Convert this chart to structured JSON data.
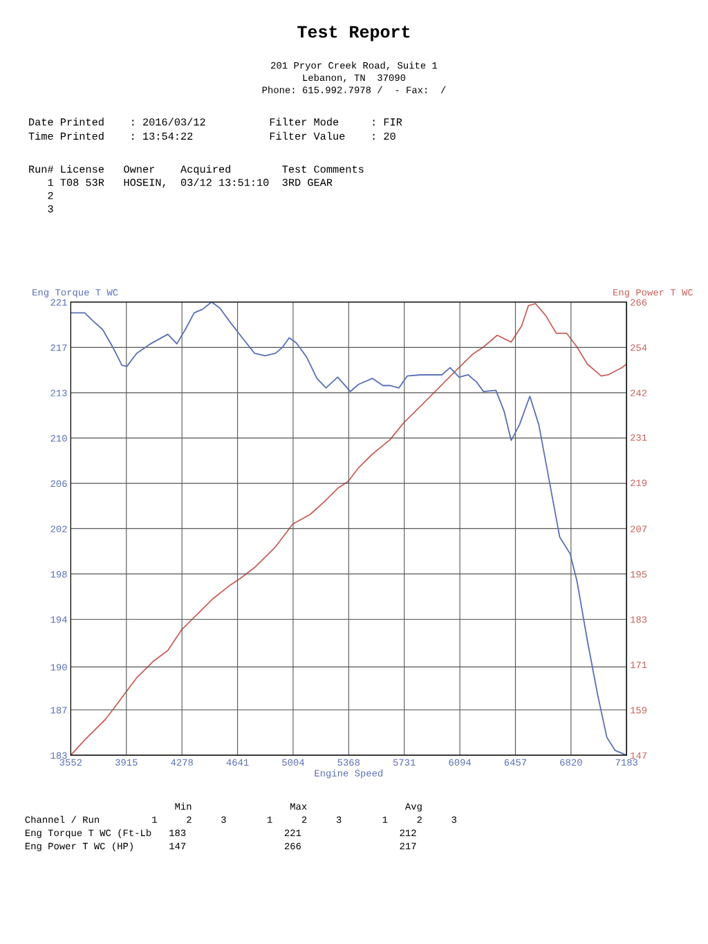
{
  "chart_data": {
    "type": "line",
    "title": "Test Report",
    "xlabel": "Engine Speed",
    "ylabel": "Eng Torque T WC",
    "y2label": "Eng Power T WC",
    "annotations": [
      "201 Pryor Creek Road, Suite 1",
      "Lebanon, TN  37090",
      "Phone: 615.992.7978 /  - Fax:  /",
      "Date Printed    : 2016/03/12          Filter Mode     : FIR",
      "Time Printed    : 13:54:22            Filter Value    : 20",
      "Run# License   Owner    Acquired        Test Comments",
      "   1 T08 53R   HOSEIN,  03/12 13:51:10  3RD GEAR",
      "   2",
      "   3",
      "                          Min                 Max                 Avg",
      "Channel / Run         1     2     3       1     2     3       1     2     3",
      "Eng Torque T WC (Ft-Lb   183                 221                 212",
      "Eng Power T WC (HP)      147                 266                 217"
    ],
    "xlim": [
      3552,
      7183
    ],
    "xticks": [
      3552,
      {
        "value": 3915.1,
        "label": "3915"
      },
      {
        "value": 4278.2,
        "label": "4278"
      },
      {
        "value": 4641.3,
        "label": "4641"
      },
      {
        "value": 5004.4,
        "label": "5004"
      },
      {
        "value": 5367.5,
        "label": "5368"
      },
      {
        "value": 5730.6,
        "label": "5731"
      },
      {
        "value": 6093.7,
        "label": "6094"
      },
      {
        "value": 6456.8,
        "label": "6457"
      },
      {
        "value": 6819.9,
        "label": "6820"
      },
      7183
    ],
    "ylim": [
      183,
      221
    ],
    "yticks": [
      183,
      {
        "value": 186.8,
        "label": "187"
      },
      {
        "value": 190.4,
        "label": "190"
      },
      {
        "value": 194.4,
        "label": "194"
      },
      {
        "value": 198.2,
        "label": "198"
      },
      202,
      {
        "value": 205.8,
        "label": "206"
      },
      {
        "value": 209.6,
        "label": "210"
      },
      {
        "value": 213.4,
        "label": "213"
      },
      {
        "value": 217.2,
        "label": "217"
      },
      221
    ],
    "y2lim": [
      147,
      266
    ],
    "y2ticks": [
      147,
      {
        "value": 158.9,
        "label": "159"
      },
      {
        "value": 170.8,
        "label": "171"
      },
      {
        "value": 182.7,
        "label": "183"
      },
      {
        "value": 194.6,
        "label": "195"
      },
      {
        "value": 206.5,
        "label": "207"
      },
      {
        "value": 218.6,
        "label": "219"
      },
      {
        "value": 230.5,
        "label": "231"
      },
      {
        "value": 242.2,
        "label": "242"
      },
      {
        "value": 254.1,
        "label": "254"
      },
      266
    ],
    "grid": true,
    "series": [
      {
        "color": "#5a6fb5",
        "x": [
          3552,
          3643,
          3690,
          3760,
          3827,
          3886,
          3918,
          3982,
          4073,
          4186,
          4245,
          4300,
          4358,
          4413,
          4472,
          4526,
          4594,
          4685,
          4753,
          4821,
          4889,
          4934,
          4979,
          5024,
          5092,
          5160,
          5219,
          5296,
          5378,
          5432,
          5523,
          5591,
          5636,
          5695,
          5750,
          5840,
          5908,
          5976,
          6030,
          6089,
          6148,
          6203,
          6248,
          6329,
          6384,
          6429,
          6483,
          6551,
          6610,
          6678,
          6746,
          6814,
          6859,
          6927,
          6995,
          7054,
          7108,
          7183
        ],
        "values": [
          220.1,
          220.1,
          219.5,
          218.7,
          217.2,
          215.7,
          215.6,
          216.7,
          217.5,
          218.3,
          217.5,
          218.7,
          220.1,
          220.4,
          221,
          220.5,
          219.3,
          217.8,
          216.7,
          216.5,
          216.7,
          217.2,
          218,
          217.6,
          216.4,
          214.6,
          213.8,
          214.7,
          213.5,
          214.1,
          214.6,
          214,
          214,
          213.8,
          214.8,
          214.9,
          214.9,
          214.9,
          215.5,
          214.7,
          214.9,
          214.3,
          213.5,
          213.6,
          211.8,
          209.4,
          210.7,
          213.1,
          210.7,
          206,
          201.3,
          199.9,
          197.6,
          192.6,
          188,
          184.5,
          183.4,
          183
        ]
      },
      {
        "color": "#c8605a",
        "axis": "y2",
        "x": [
          3552,
          3643,
          3778,
          3846,
          3982,
          4095,
          4186,
          4277,
          4390,
          4481,
          4594,
          4662,
          4753,
          4889,
          5002,
          5115,
          5206,
          5296,
          5364,
          5432,
          5523,
          5636,
          5727,
          5840,
          5976,
          6066,
          6180,
          6248,
          6338,
          6429,
          6497,
          6542,
          6588,
          6656,
          6724,
          6792,
          6859,
          6927,
          7017,
          7063,
          7153,
          7183
        ],
        "values": [
          147,
          151,
          156.4,
          160,
          167.3,
          171.8,
          174.5,
          180,
          184.5,
          188.1,
          191.7,
          193.5,
          196.3,
          201.7,
          207.7,
          210.2,
          213.5,
          217.1,
          218.9,
          222.5,
          226.1,
          229.8,
          234.3,
          238.8,
          244.3,
          247.9,
          252.4,
          254.2,
          257.3,
          255.5,
          259.7,
          265.1,
          265.6,
          262.4,
          257.8,
          257.8,
          254.2,
          249.7,
          246.6,
          246.9,
          248.8,
          249.7
        ]
      }
    ]
  }
}
